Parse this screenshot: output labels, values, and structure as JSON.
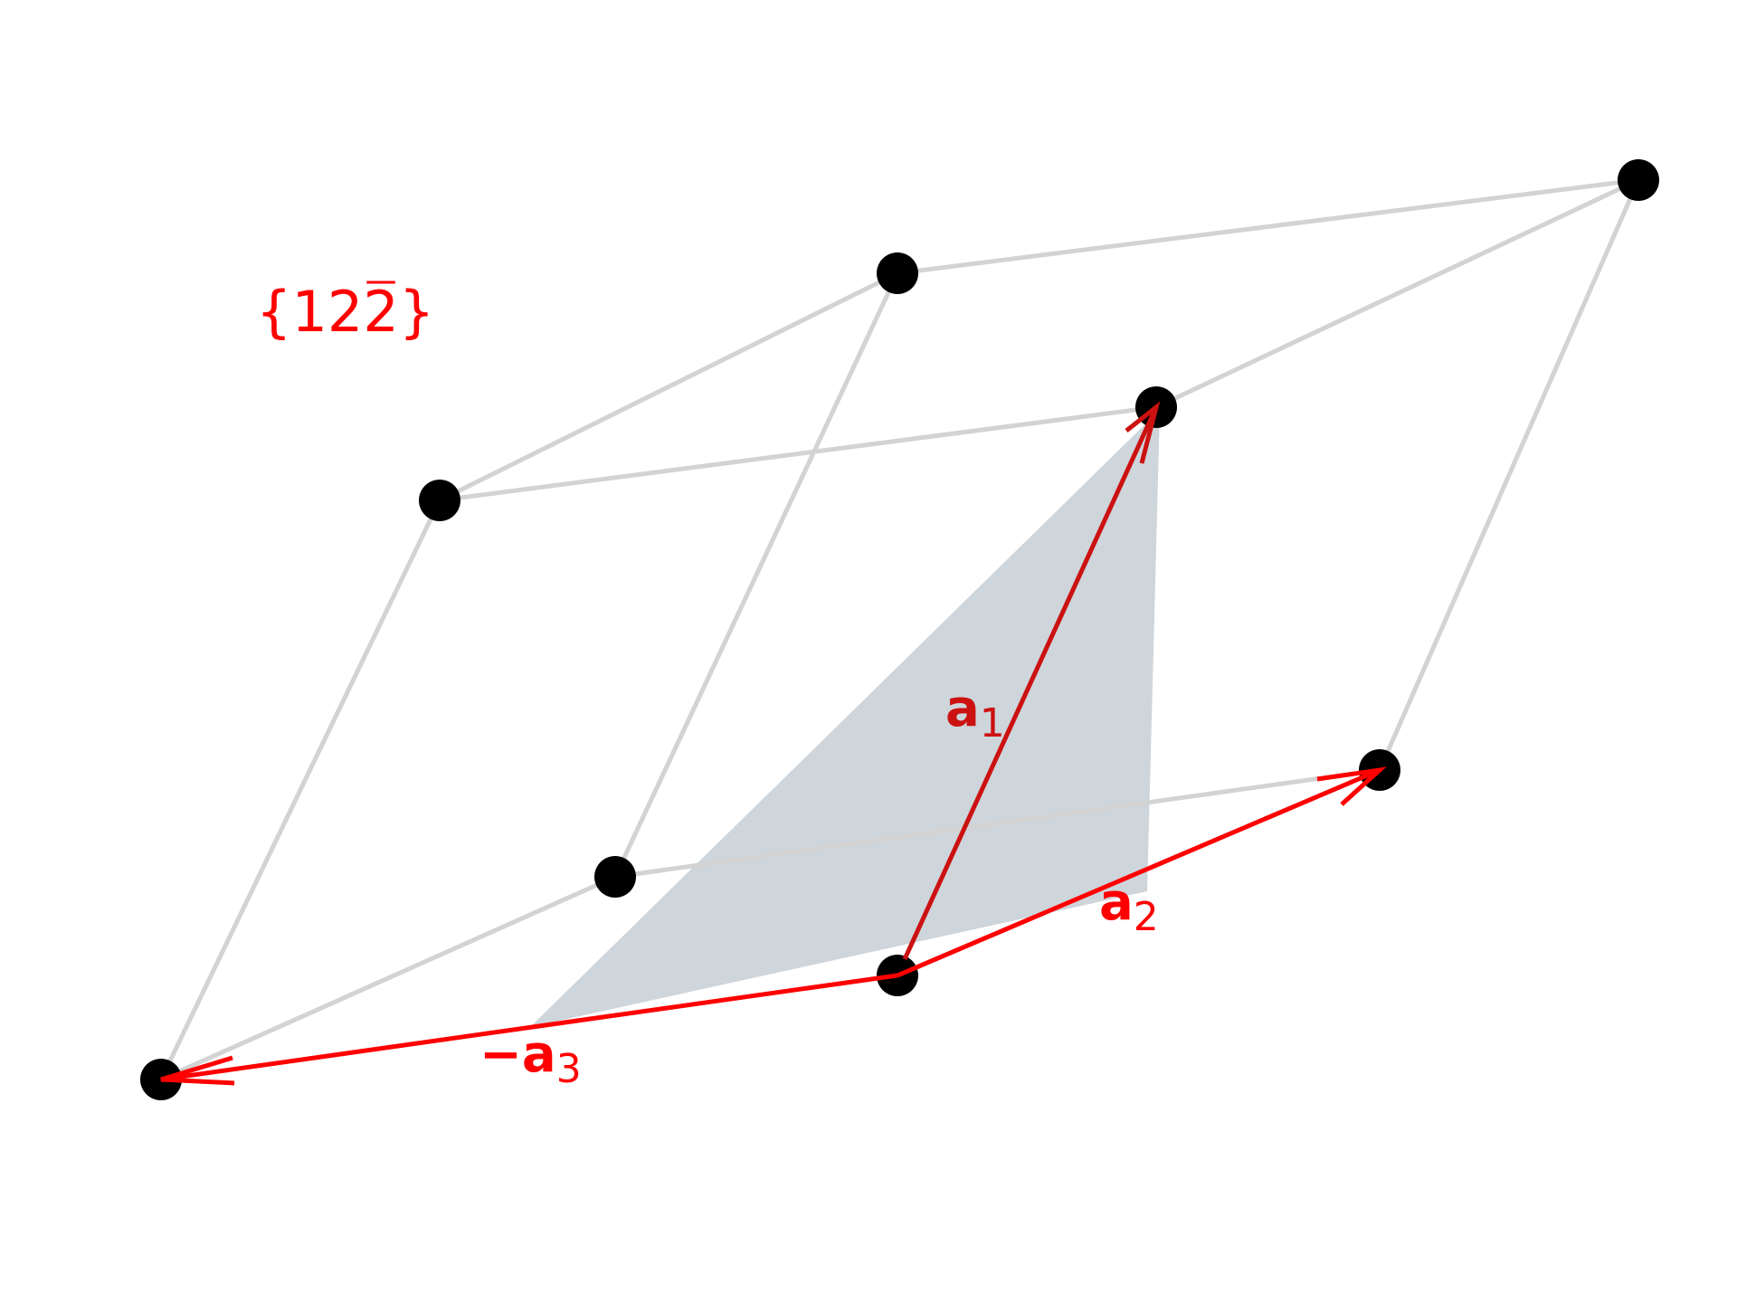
{
  "plane_label": {
    "open": "{",
    "digits_plain": "12",
    "digit_barred": "2",
    "close": "}"
  },
  "vectors": {
    "a1": {
      "symbol": "a",
      "subscript": "1",
      "color": "#cc1111"
    },
    "a2": {
      "symbol": "a",
      "subscript": "2",
      "color": "#ff0000"
    },
    "a3": {
      "prefix": "−",
      "symbol": "a",
      "subscript": "3",
      "color": "#ff0000"
    }
  },
  "colors": {
    "edge": "#d3d3d3",
    "node": "#000000",
    "plane_fill": "#b4bec8",
    "label": "#ff0000"
  }
}
